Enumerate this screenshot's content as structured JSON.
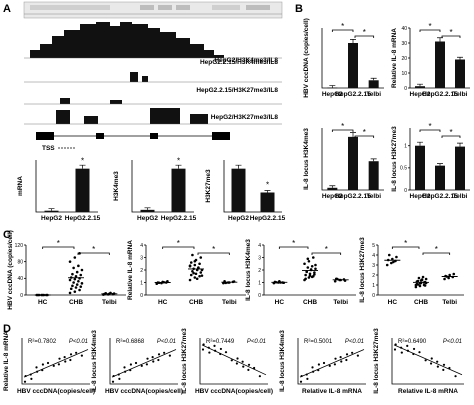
{
  "panel_letters": [
    "A",
    "B",
    "C",
    "D"
  ],
  "browser": {
    "tracks": [
      {
        "label": "HepG2.2.15/H3K4me3/IL8"
      },
      {
        "label": "HepG2/H3K4me3/IL8"
      },
      {
        "label": "HepG2.2.15/H3K27me3/IL8"
      },
      {
        "label": "HepG2/H3K27me3/IL8"
      }
    ],
    "tss_label": "TSS"
  },
  "chart_data": [
    {
      "id": "A1",
      "type": "bar",
      "ylabel": "mRNA",
      "categories": [
        "HepG2",
        "HepG2.2.15"
      ],
      "values": [
        0.3,
        10
      ],
      "ylim": [
        0,
        12
      ],
      "sig": [
        "*"
      ]
    },
    {
      "id": "A2",
      "type": "bar",
      "ylabel": "H3K4me3",
      "categories": [
        "HepG2",
        "HepG2.2.15"
      ],
      "values": [
        0.5,
        10
      ],
      "ylim": [
        0,
        12
      ],
      "sig": [
        "*"
      ]
    },
    {
      "id": "A3",
      "type": "bar",
      "ylabel": "H3K27me3",
      "categories": [
        "HepG2",
        "HepG2.2.15"
      ],
      "values": [
        10,
        4.5
      ],
      "ylim": [
        0,
        12
      ],
      "sig": [
        "*"
      ]
    },
    {
      "id": "B1",
      "type": "bar",
      "ylabel": "HBV cccDNA (copies/cell)",
      "categories": [
        "HepG2",
        "HepG2.2.15",
        "Telbi"
      ],
      "values": [
        0.1,
        10.5,
        1.8
      ],
      "ylim": [
        0,
        14
      ],
      "sig": [
        "*",
        "*"
      ]
    },
    {
      "id": "B2",
      "type": "bar",
      "ylabel": "Relative IL-8 mRNA",
      "categories": [
        "HepG2",
        "HepG2.2.15",
        "Telbi"
      ],
      "values": [
        1.2,
        31,
        19
      ],
      "ylim": [
        0,
        40
      ],
      "yticks": [
        0,
        10,
        20,
        30,
        40
      ],
      "sig": [
        "*",
        "*"
      ]
    },
    {
      "id": "B3",
      "type": "bar",
      "ylabel": "IL-8 locus H3K4me3",
      "categories": [
        "HepG2",
        "HepG2.2.15",
        "Telbi"
      ],
      "values": [
        0.5,
        12,
        6.5
      ],
      "ylim": [
        0,
        14
      ],
      "sig": [
        "*",
        "*"
      ]
    },
    {
      "id": "B4",
      "type": "bar",
      "ylabel": "IL-8 locus H3K27me3",
      "categories": [
        "HepG2",
        "HepG2.2.15",
        "Telbi"
      ],
      "values": [
        1.0,
        0.55,
        0.98
      ],
      "ylim": [
        0,
        1.4
      ],
      "yticks": [
        0,
        0.5,
        1.0
      ],
      "sig": [
        "*",
        "*"
      ]
    },
    {
      "id": "C1",
      "type": "scatter",
      "ylabel": "HBV cccDNA (copies/cell)",
      "categories": [
        "HC",
        "CHB",
        "Telbi"
      ],
      "ylim": [
        0,
        120
      ],
      "yticks": [
        0,
        40,
        80,
        120
      ],
      "groups": [
        {
          "name": "HC",
          "values": [
            0,
            0,
            0,
            0,
            0,
            0,
            0,
            0
          ]
        },
        {
          "name": "CHB",
          "values": [
            5,
            8,
            12,
            15,
            18,
            20,
            22,
            25,
            28,
            30,
            33,
            36,
            38,
            40,
            42,
            45,
            48,
            50,
            55,
            60,
            65,
            70,
            80,
            90,
            100
          ]
        },
        {
          "name": "Telbi",
          "values": [
            1,
            1.5,
            2,
            2.5,
            3,
            3.5,
            4,
            5
          ]
        }
      ],
      "sig": [
        "*",
        "*"
      ]
    },
    {
      "id": "C2",
      "type": "scatter",
      "ylabel": "Relative IL-8 mRNA",
      "categories": [
        "HC",
        "CHB",
        "Telbi"
      ],
      "ylim": [
        0,
        4
      ],
      "yticks": [
        0,
        1,
        2,
        3,
        4
      ],
      "groups": [
        {
          "name": "HC",
          "values": [
            0.9,
            0.95,
            1.0,
            1.0,
            1.05,
            1.1,
            0.98,
            1.02
          ]
        },
        {
          "name": "CHB",
          "values": [
            1.2,
            1.4,
            1.5,
            1.6,
            1.7,
            1.8,
            1.9,
            2.0,
            2.0,
            2.1,
            2.2,
            2.3,
            2.4,
            2.5,
            2.6,
            2.8,
            3.0,
            3.2,
            1.3,
            1.55,
            1.75,
            2.15,
            2.35,
            2.7
          ]
        },
        {
          "name": "Telbi",
          "values": [
            0.95,
            1.0,
            1.05,
            1.1,
            1.0,
            1.08,
            0.97
          ]
        }
      ],
      "sig": [
        "*",
        "*"
      ]
    },
    {
      "id": "C3",
      "type": "scatter",
      "ylabel": "IL-8 locus H3K4me3",
      "categories": [
        "HC",
        "CHB",
        "Telbi"
      ],
      "ylim": [
        0,
        4
      ],
      "yticks": [
        0,
        1,
        2,
        3,
        4
      ],
      "groups": [
        {
          "name": "HC",
          "values": [
            0.95,
            1.0,
            1.0,
            1.05,
            1.1,
            0.98,
            1.02,
            1.0
          ]
        },
        {
          "name": "CHB",
          "values": [
            1.2,
            1.4,
            1.5,
            1.6,
            1.7,
            1.8,
            1.9,
            2.0,
            2.1,
            2.2,
            2.3,
            2.5,
            2.7,
            3.0,
            1.3,
            1.55,
            1.65,
            1.85,
            2.05,
            2.4,
            2.9,
            1.45
          ]
        },
        {
          "name": "Telbi",
          "values": [
            1.1,
            1.2,
            1.25,
            1.3,
            1.2,
            1.15,
            1.28
          ]
        }
      ],
      "sig": [
        "*",
        "*"
      ]
    },
    {
      "id": "C4",
      "type": "scatter",
      "ylabel": "IL-8 locus H3K27me3",
      "categories": [
        "HC",
        "CHB",
        "Telbi"
      ],
      "ylim": [
        0,
        5
      ],
      "yticks": [
        0,
        1,
        2,
        3,
        4,
        5
      ],
      "groups": [
        {
          "name": "HC",
          "values": [
            3.0,
            3.2,
            3.4,
            3.5,
            3.6,
            3.8,
            4.0,
            3.3
          ]
        },
        {
          "name": "CHB",
          "values": [
            0.8,
            0.9,
            1.0,
            1.1,
            1.2,
            1.3,
            1.4,
            1.5,
            1.6,
            1.7,
            1.8,
            1.0,
            1.15,
            1.25,
            1.35,
            1.45,
            0.95,
            1.05,
            1.55,
            1.2
          ]
        },
        {
          "name": "Telbi",
          "values": [
            1.6,
            1.7,
            1.8,
            1.9,
            2.0,
            2.1,
            1.85
          ]
        }
      ],
      "sig": [
        "*",
        "*"
      ]
    },
    {
      "id": "D1",
      "type": "scatter",
      "ylabel": "Relative IL-8 mRNA",
      "xlabel": "HBV cccDNA(copies/cell)",
      "annotation": "R²=0.7802",
      "p": "P<0.01",
      "trend": "up"
    },
    {
      "id": "D2",
      "type": "scatter",
      "ylabel": "IL-8 locus H3K4me3",
      "xlabel": "HBV cccDNA(copies/cell)",
      "annotation": "R²=0.6868",
      "p": "P<0.01",
      "trend": "up"
    },
    {
      "id": "D3",
      "type": "scatter",
      "ylabel": "IL-8 locus H3K27me3",
      "xlabel": "HBV cccDNA(copies/cell)",
      "annotation": "R²=0.7449",
      "p": "P<0.01",
      "trend": "down"
    },
    {
      "id": "D4",
      "type": "scatter",
      "ylabel": "IL-8 locus H3K4me3",
      "xlabel": "Relative IL-8 mRNA",
      "annotation": "R²=0.5001",
      "p": "P<0.01",
      "trend": "up"
    },
    {
      "id": "D5",
      "type": "scatter",
      "ylabel": "IL-8 locus H3K27me3",
      "xlabel": "Relative IL-8 mRNA",
      "annotation": "R²=0.6490",
      "p": "P<0.01",
      "trend": "down"
    }
  ]
}
